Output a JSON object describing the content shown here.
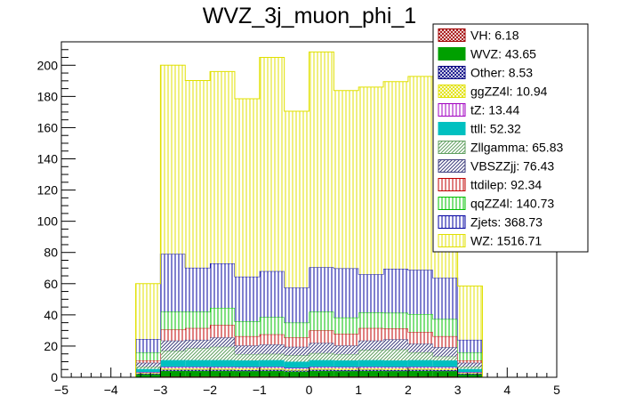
{
  "chart_data": {
    "type": "bar",
    "stacked": true,
    "title": "WVZ_3j_muon_phi_1",
    "xlabel": "",
    "ylabel": "",
    "xlim": [
      -5,
      5
    ],
    "ylim": [
      0,
      215
    ],
    "xticks": [
      -5,
      -4,
      -3,
      -2,
      -1,
      0,
      1,
      2,
      3,
      4,
      5
    ],
    "yticks": [
      0,
      20,
      40,
      60,
      80,
      100,
      120,
      140,
      160,
      180,
      200
    ],
    "bin_edges": [
      -3.5,
      -3.0,
      -2.5,
      -2.0,
      -1.5,
      -1.0,
      -0.5,
      0.0,
      0.5,
      1.0,
      1.5,
      2.0,
      2.5,
      3.0,
      3.5
    ],
    "legend_position": "top-right",
    "series": [
      {
        "name": "VH",
        "legend": "VH: 6.18",
        "color": "#a00000",
        "hatch": "cross",
        "values": [
          0.3,
          0.5,
          0.5,
          0.5,
          0.5,
          0.5,
          0.4,
          0.5,
          0.5,
          0.5,
          0.5,
          0.5,
          0.5,
          0.3
        ]
      },
      {
        "name": "WVZ",
        "legend": "WVZ: 43.65",
        "color": "#00a000",
        "hatch": "fill",
        "values": [
          1.5,
          3.5,
          3.5,
          3.5,
          3.4,
          3.5,
          3.2,
          3.5,
          3.4,
          3.5,
          3.4,
          3.5,
          3.4,
          1.5
        ]
      },
      {
        "name": "Other",
        "legend": "Other: 8.53",
        "color": "#000080",
        "hatch": "cross",
        "values": [
          0.4,
          0.7,
          0.7,
          0.7,
          0.7,
          0.7,
          0.6,
          0.7,
          0.7,
          0.7,
          0.7,
          0.7,
          0.7,
          0.4
        ]
      },
      {
        "name": "ggZZ4l",
        "legend": "ggZZ4l: 10.94",
        "color": "#e0e000",
        "hatch": "cross",
        "values": [
          0.5,
          0.9,
          0.9,
          0.9,
          0.9,
          0.9,
          0.8,
          0.9,
          0.9,
          0.9,
          0.9,
          0.9,
          0.9,
          0.5
        ]
      },
      {
        "name": "tZ",
        "legend": "tZ: 13.44",
        "color": "#a000c0",
        "hatch": "vert",
        "values": [
          0.6,
          1.1,
          1.1,
          1.1,
          1.1,
          1.1,
          1.0,
          1.1,
          1.1,
          1.1,
          1.1,
          1.1,
          1.1,
          0.6
        ]
      },
      {
        "name": "ttll",
        "legend": "ttll: 52.32",
        "color": "#00c0c0",
        "hatch": "fill",
        "values": [
          2.0,
          4.3,
          4.3,
          4.3,
          4.2,
          4.3,
          4.0,
          4.3,
          4.2,
          4.3,
          4.2,
          4.3,
          4.2,
          2.0
        ]
      },
      {
        "name": "Zllgamma",
        "legend": "Zllgamma: 65.83",
        "color": "#60a060",
        "hatch": "diag",
        "values": [
          1.5,
          6.0,
          7.5,
          8.5,
          4.0,
          4.0,
          4.0,
          4.5,
          4.0,
          6.5,
          7.0,
          5.0,
          2.5,
          1.5
        ]
      },
      {
        "name": "VBSZZjj",
        "legend": "VBSZZjj: 76.43",
        "color": "#404080",
        "hatch": "diag",
        "values": [
          2.5,
          6.5,
          5.5,
          6.0,
          5.5,
          6.0,
          5.5,
          6.5,
          5.5,
          6.0,
          6.5,
          5.5,
          6.0,
          2.5
        ]
      },
      {
        "name": "ttdilep",
        "legend": "ttdilep: 92.34",
        "color": "#c00000",
        "hatch": "vert",
        "values": [
          1.5,
          7.0,
          7.5,
          8.0,
          6.0,
          6.5,
          6.0,
          8.0,
          7.5,
          8.0,
          7.0,
          7.5,
          7.0,
          1.5
        ]
      },
      {
        "name": "qqZZ4l",
        "legend": "qqZZ4l: 140.73",
        "color": "#00c000",
        "hatch": "vert",
        "values": [
          5.0,
          11.5,
          10.5,
          11.0,
          9.5,
          11.0,
          9.5,
          12.0,
          10.5,
          10.0,
          10.0,
          11.5,
          11.0,
          5.0
        ]
      },
      {
        "name": "Zjets",
        "legend": "Zjets: 368.73",
        "color": "#0000a0",
        "hatch": "vert",
        "values": [
          8.7,
          37.0,
          28.2,
          28.5,
          28.7,
          29.5,
          22.5,
          28.5,
          31.5,
          24.5,
          28.2,
          28.3,
          26.4,
          8.2
        ]
      },
      {
        "name": "WZ",
        "legend": "WZ: 1516.71",
        "color": "#e0e000",
        "hatch": "vert",
        "values": [
          35.5,
          121.0,
          120.0,
          123.0,
          114.0,
          137.0,
          113.0,
          138.0,
          114.0,
          120.0,
          120.0,
          124.0,
          114.0,
          34.5
        ]
      }
    ]
  }
}
